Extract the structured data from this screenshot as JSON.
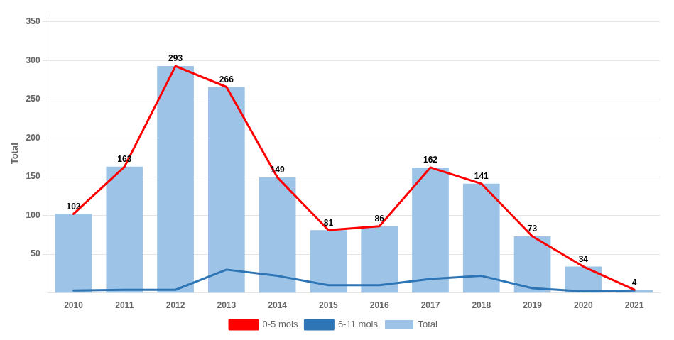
{
  "chart_data": {
    "type": "bar",
    "categories": [
      "2010",
      "2011",
      "2012",
      "2013",
      "2014",
      "2015",
      "2016",
      "2017",
      "2018",
      "2019",
      "2020",
      "2021"
    ],
    "series": [
      {
        "name": "Total",
        "type": "bar",
        "color": "#9DC3E6",
        "data_labels": true,
        "values": [
          102,
          163,
          293,
          266,
          149,
          81,
          86,
          162,
          141,
          73,
          34,
          4
        ]
      },
      {
        "name": "0-5 mois",
        "type": "line",
        "color": "#FF0000",
        "marker": "none",
        "line_style": "solid",
        "values": [
          102,
          163,
          293,
          266,
          149,
          81,
          86,
          162,
          141,
          73,
          34,
          4
        ]
      },
      {
        "name": "6-11 mois",
        "type": "line",
        "color": "#2E75B6",
        "marker": "none",
        "line_style": "solid",
        "values": [
          3,
          4,
          4,
          30,
          22,
          10,
          10,
          18,
          22,
          6,
          2,
          3
        ]
      }
    ],
    "ylabel": "Total",
    "ylim": [
      0,
      360
    ],
    "yticks": [
      50,
      100,
      150,
      200,
      250,
      300,
      350
    ],
    "grid": true,
    "legend": "bottom"
  }
}
